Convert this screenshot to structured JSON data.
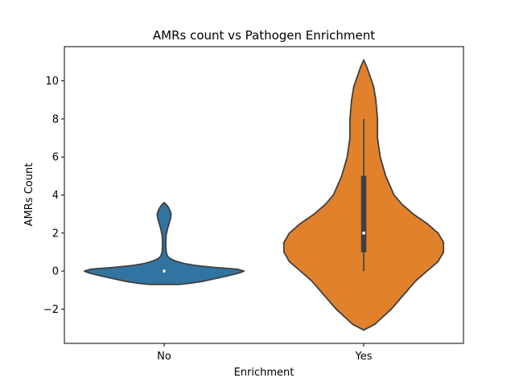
{
  "chart_data": {
    "type": "violin",
    "title": "AMRs count vs Pathogen Enrichment",
    "xlabel": "Enrichment",
    "ylabel": "AMRs Count",
    "categories": [
      "No",
      "Yes"
    ],
    "ylim": [
      -3.8,
      11.8
    ],
    "yticks": [
      -2,
      0,
      2,
      4,
      6,
      8,
      10
    ],
    "ytick_labels": [
      "−2",
      "0",
      "2",
      "4",
      "6",
      "8",
      "10"
    ],
    "grid": false,
    "legend": "none",
    "series": [
      {
        "category": "No",
        "color": "#3274a1",
        "median": 0,
        "q1": 0,
        "q3": 0,
        "whisker_low": 0,
        "whisker_high": 0,
        "min": -0.7,
        "max": 3.6,
        "density_profile": [
          [
            -0.7,
            0.18
          ],
          [
            -0.65,
            0.3
          ],
          [
            -0.55,
            0.46
          ],
          [
            -0.4,
            0.62
          ],
          [
            -0.25,
            0.78
          ],
          [
            -0.1,
            0.92
          ],
          [
            0.0,
            0.98
          ],
          [
            0.1,
            0.9
          ],
          [
            0.2,
            0.6
          ],
          [
            0.3,
            0.38
          ],
          [
            0.4,
            0.24
          ],
          [
            0.5,
            0.16
          ],
          [
            0.6,
            0.1
          ],
          [
            0.7,
            0.06
          ],
          [
            0.8,
            0.04
          ],
          [
            1.0,
            0.025
          ],
          [
            1.3,
            0.02
          ],
          [
            1.6,
            0.02
          ],
          [
            1.9,
            0.025
          ],
          [
            2.2,
            0.04
          ],
          [
            2.5,
            0.06
          ],
          [
            2.8,
            0.08
          ],
          [
            3.0,
            0.085
          ],
          [
            3.2,
            0.07
          ],
          [
            3.4,
            0.045
          ],
          [
            3.5,
            0.025
          ],
          [
            3.6,
            0.0
          ]
        ]
      },
      {
        "category": "Yes",
        "color": "#e1812c",
        "median": 2,
        "q1": 1,
        "q3": 5,
        "whisker_low": 0,
        "whisker_high": 8,
        "min": -3.1,
        "max": 11.1,
        "density_profile": [
          [
            -3.1,
            0.0
          ],
          [
            -2.8,
            0.02
          ],
          [
            -2.4,
            0.035
          ],
          [
            -2.0,
            0.05
          ],
          [
            -1.5,
            0.065
          ],
          [
            -1.0,
            0.08
          ],
          [
            -0.5,
            0.095
          ],
          [
            0.0,
            0.115
          ],
          [
            0.5,
            0.135
          ],
          [
            1.0,
            0.145
          ],
          [
            1.5,
            0.145
          ],
          [
            2.0,
            0.135
          ],
          [
            2.5,
            0.115
          ],
          [
            3.0,
            0.09
          ],
          [
            3.5,
            0.07
          ],
          [
            4.0,
            0.055
          ],
          [
            5.0,
            0.04
          ],
          [
            6.0,
            0.03
          ],
          [
            7.0,
            0.025
          ],
          [
            8.0,
            0.025
          ],
          [
            9.0,
            0.022
          ],
          [
            9.7,
            0.018
          ],
          [
            10.2,
            0.012
          ],
          [
            10.7,
            0.006
          ],
          [
            11.1,
            0.0
          ]
        ]
      }
    ]
  }
}
